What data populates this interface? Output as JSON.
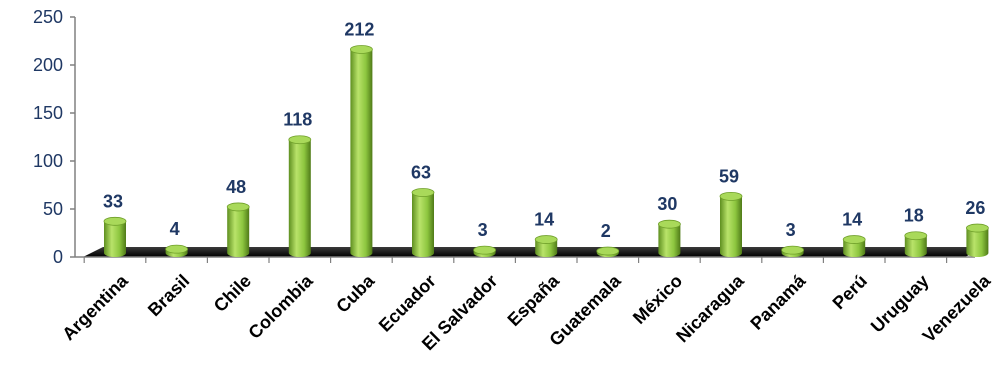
{
  "chart_data": {
    "type": "bar",
    "title": "",
    "xlabel": "",
    "ylabel": "",
    "categories": [
      "Argentina",
      "Brasil",
      "Chile",
      "Colombia",
      "Cuba",
      "Ecuador",
      "El Salvador",
      "España",
      "Guatemala",
      "México",
      "Nicaragua",
      "Panamá",
      "Perú",
      "Uruguay",
      "Venezuela"
    ],
    "values": [
      33,
      4,
      48,
      118,
      212,
      63,
      3,
      14,
      2,
      30,
      59,
      3,
      14,
      18,
      26
    ],
    "y_ticks": [
      "0",
      "50",
      "100",
      "150",
      "200",
      "250"
    ],
    "ylim": [
      0,
      250
    ],
    "grid": false,
    "legend": "none",
    "bar_color": "#8dc63f",
    "floor_color": "#1a1a1a",
    "label_color": "#1f3864"
  }
}
